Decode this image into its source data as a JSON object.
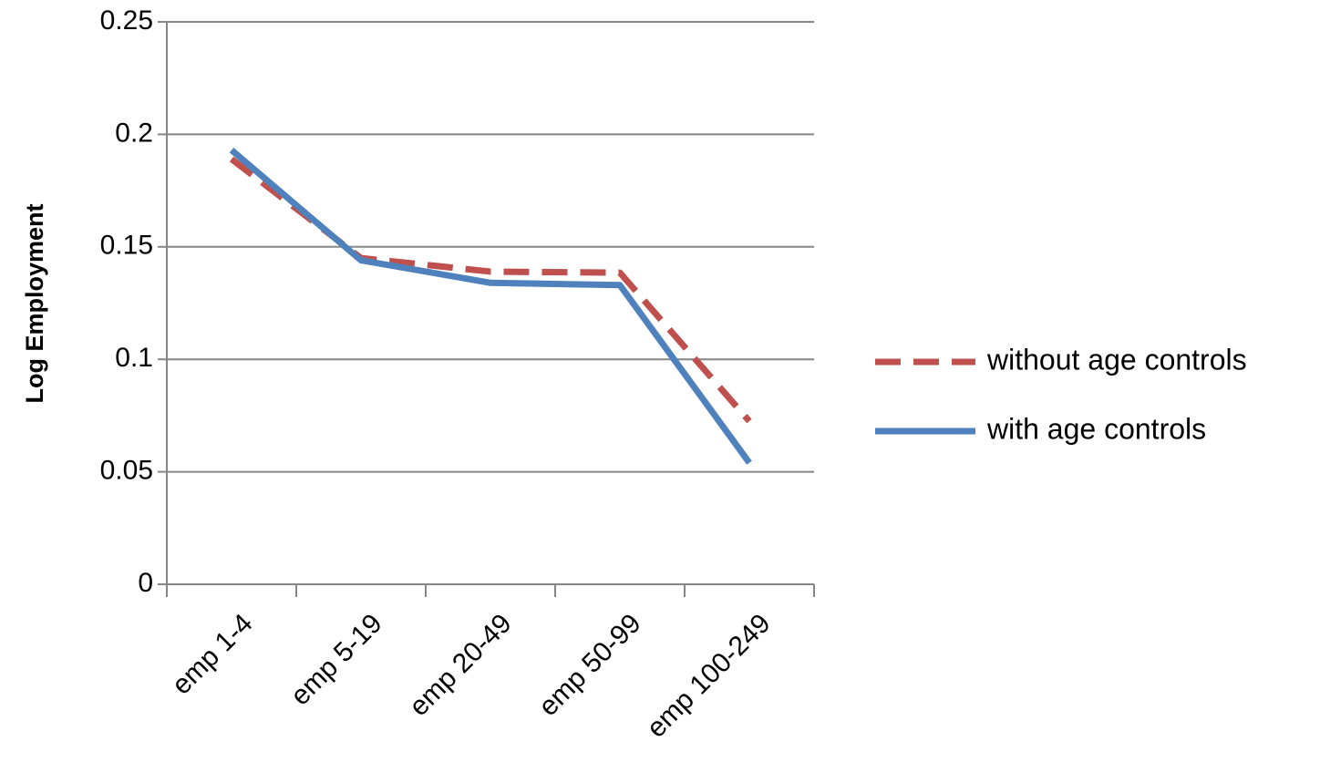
{
  "chart_data": {
    "type": "line",
    "y_label": "Log Employment",
    "categories": [
      "emp 1-4",
      "emp 5-19",
      "emp 20-49",
      "emp 50-99",
      "emp 100-249"
    ],
    "series": [
      {
        "name": "without age controls",
        "color": "#c0504d",
        "line_style": "dashed",
        "values": [
          0.189,
          0.145,
          0.139,
          0.1385,
          0.0725
        ]
      },
      {
        "name": "with age controls",
        "color": "#4f81bd",
        "line_style": "solid",
        "values": [
          0.193,
          0.144,
          0.134,
          0.133,
          0.054
        ]
      }
    ],
    "ylim": [
      0,
      0.25
    ],
    "yticks": [
      0,
      0.05,
      0.1,
      0.15,
      0.2,
      0.25
    ],
    "grid": true,
    "legend": "right"
  }
}
